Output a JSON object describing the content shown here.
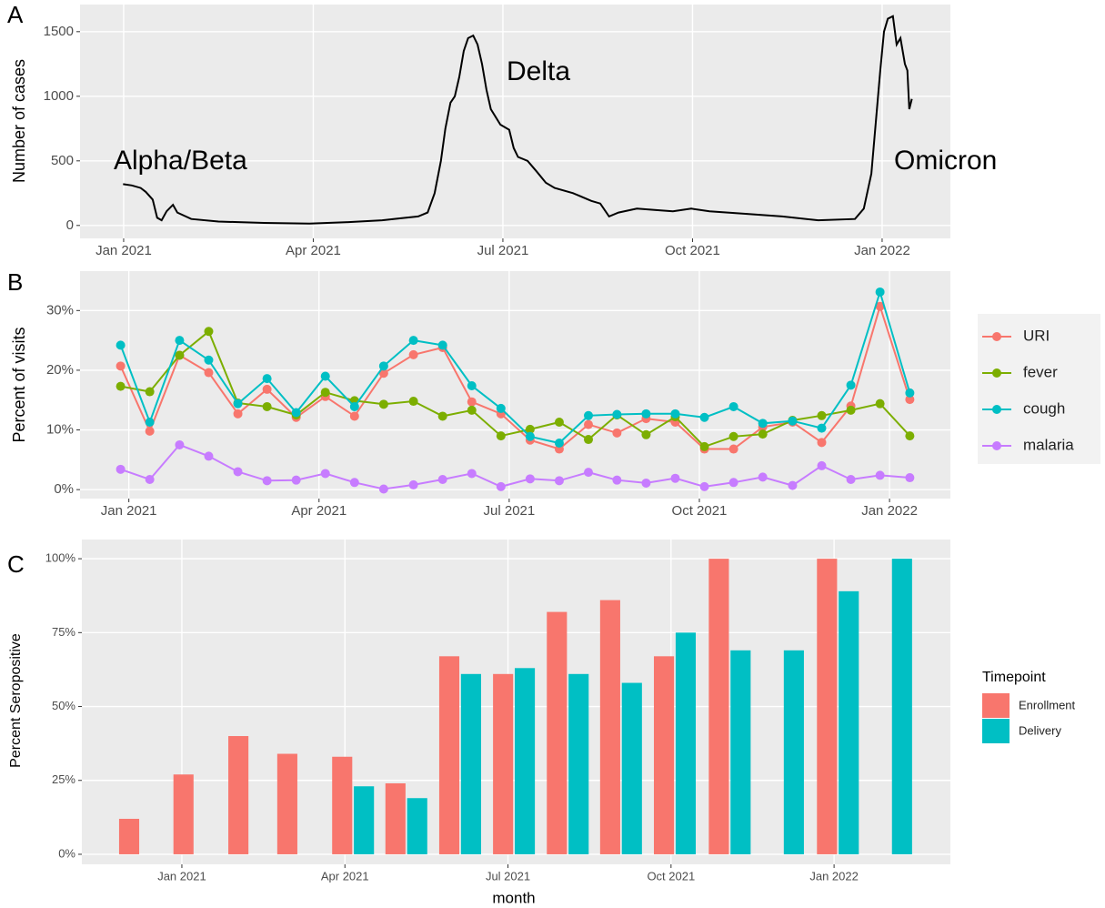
{
  "chart_data": [
    {
      "type": "line",
      "panel": "A",
      "ylabel": "Number of cases",
      "annotations": [
        "Alpha/Beta",
        "Delta",
        "Omicron"
      ],
      "x": [
        -0.01,
        0.13,
        0.27,
        0.35,
        0.46,
        0.53,
        0.6,
        0.68,
        0.78,
        0.85,
        1.07,
        1.5,
        2.22,
        2.94,
        3.51,
        4.09,
        4.37,
        4.66,
        4.81,
        4.92,
        5.02,
        5.09,
        5.17,
        5.24,
        5.31,
        5.38,
        5.45,
        5.53,
        5.6,
        5.67,
        5.74,
        5.81,
        5.96,
        6.1,
        6.17,
        6.24,
        6.39,
        6.53,
        6.68,
        6.82,
        7.11,
        7.4,
        7.54,
        7.68,
        7.83,
        8.12,
        8.4,
        8.69,
        8.98,
        9.27,
        9.84,
        10.42,
        10.99,
        11.57,
        11.71,
        11.83,
        11.9,
        11.97,
        12.03,
        12.09,
        12.17,
        12.23,
        12.29,
        12.36,
        12.4,
        12.43,
        12.47
      ],
      "values": [
        320,
        310,
        290,
        260,
        200,
        60,
        40,
        110,
        160,
        100,
        50,
        30,
        20,
        15,
        25,
        40,
        55,
        70,
        100,
        250,
        500,
        750,
        950,
        1000,
        1150,
        1350,
        1450,
        1470,
        1400,
        1250,
        1050,
        900,
        780,
        740,
        600,
        530,
        500,
        420,
        330,
        290,
        250,
        190,
        170,
        70,
        100,
        130,
        120,
        110,
        130,
        110,
        90,
        70,
        40,
        50,
        130,
        400,
        800,
        1200,
        1500,
        1600,
        1620,
        1400,
        1450,
        1250,
        1200,
        900,
        980
      ],
      "color": "#000000",
      "xlim": [
        -0.69,
        13.08
      ],
      "xticks": [
        {
          "value": 0,
          "label": "Jan 2021"
        },
        {
          "value": 3,
          "label": "Apr 2021"
        },
        {
          "value": 6,
          "label": "Jul 2021"
        },
        {
          "value": 9,
          "label": "Oct 2021"
        },
        {
          "value": 12,
          "label": "Jan 2022"
        }
      ],
      "ylim": [
        -100,
        1710
      ],
      "yticks": [
        0,
        500,
        1000,
        1500
      ],
      "grid": true
    },
    {
      "type": "line",
      "panel": "B",
      "ylabel": "Percent of visits",
      "markers": true,
      "x": [
        -0.13,
        0.33,
        0.8,
        1.26,
        1.72,
        2.18,
        2.64,
        3.1,
        3.56,
        4.02,
        4.49,
        4.95,
        5.41,
        5.87,
        6.33,
        6.79,
        7.25,
        7.7,
        8.16,
        8.62,
        9.08,
        9.54,
        10.0,
        10.47,
        10.93,
        11.39,
        11.85,
        12.32
      ],
      "series": [
        {
          "name": "URI",
          "color": "#F8766D",
          "values": [
            20.7,
            9.8,
            22.5,
            19.6,
            12.7,
            16.8,
            12.1,
            15.6,
            12.3,
            19.5,
            22.6,
            23.8,
            14.7,
            12.7,
            8.3,
            6.8,
            10.9,
            9.5,
            11.9,
            11.3,
            6.8,
            6.8,
            10.5,
            11.3,
            7.9,
            14.0,
            30.7,
            15.1
          ]
        },
        {
          "name": "fever",
          "color": "#7CAE00",
          "values": [
            17.3,
            16.4,
            22.5,
            26.5,
            14.5,
            13.9,
            12.5,
            16.3,
            14.9,
            14.3,
            14.8,
            12.3,
            13.3,
            9.0,
            10.1,
            11.3,
            8.4,
            12.5,
            9.2,
            12.2,
            7.2,
            8.9,
            9.3,
            11.6,
            12.4,
            13.3,
            14.4,
            9.0
          ]
        },
        {
          "name": "cough",
          "color": "#00BFC4",
          "values": [
            24.2,
            11.3,
            25.0,
            21.7,
            14.4,
            18.6,
            12.9,
            19.0,
            13.9,
            20.7,
            25.0,
            24.2,
            17.4,
            13.6,
            8.9,
            7.8,
            12.4,
            12.6,
            12.7,
            12.7,
            12.1,
            13.9,
            11.1,
            11.5,
            10.3,
            17.5,
            33.1,
            16.2
          ]
        },
        {
          "name": "malaria",
          "color": "#C77CFF",
          "values": [
            3.4,
            1.7,
            7.5,
            5.6,
            3.0,
            1.5,
            1.6,
            2.7,
            1.2,
            0.1,
            0.8,
            1.7,
            2.7,
            0.5,
            1.8,
            1.5,
            2.9,
            1.6,
            1.1,
            1.9,
            0.5,
            1.2,
            2.1,
            0.7,
            4.0,
            1.7,
            2.4,
            2.0
          ]
        }
      ],
      "xlim": [
        -0.77,
        12.96
      ],
      "xticks": [
        {
          "value": 0,
          "label": "Jan 2021"
        },
        {
          "value": 3,
          "label": "Apr 2021"
        },
        {
          "value": 6,
          "label": "Jul 2021"
        },
        {
          "value": 9,
          "label": "Oct 2021"
        },
        {
          "value": 12,
          "label": "Jan 2022"
        }
      ],
      "ylim": [
        -1.5,
        36.6
      ],
      "yticks": [
        {
          "value": 0,
          "label": "0%"
        },
        {
          "value": 10,
          "label": "10%"
        },
        {
          "value": 20,
          "label": "20%"
        },
        {
          "value": 30,
          "label": "30%"
        }
      ],
      "grid": true,
      "legend": "right"
    },
    {
      "type": "bar",
      "panel": "C",
      "ylabel": "Percent Seropositive",
      "xlabel": "month",
      "legend_title": "Timepoint",
      "x": [
        -0.77,
        0.23,
        1.24,
        2.14,
        3.15,
        4.13,
        5.12,
        6.11,
        7.1,
        8.08,
        9.07,
        10.08,
        11.06,
        12.07,
        13.05
      ],
      "series": [
        {
          "name": "Enrollment",
          "color": "#F8766D",
          "values": [
            12,
            27,
            40,
            34,
            33,
            24,
            67,
            61,
            82,
            86,
            67,
            100,
            null,
            100,
            null
          ]
        },
        {
          "name": "Delivery",
          "color": "#00BFC4",
          "values": [
            null,
            null,
            null,
            null,
            23,
            19,
            61,
            63,
            61,
            58,
            75,
            69,
            69,
            89,
            100
          ]
        }
      ],
      "xlim": [
        -1.84,
        14.14
      ],
      "xticks": [
        {
          "value": 0,
          "label": "Jan 2021"
        },
        {
          "value": 3,
          "label": "Apr 2021"
        },
        {
          "value": 6,
          "label": "Jul 2021"
        },
        {
          "value": 9,
          "label": "Oct 2021"
        },
        {
          "value": 12,
          "label": "Jan 2022"
        }
      ],
      "ylim": [
        -3.4,
        106.5
      ],
      "yticks": [
        {
          "value": 0,
          "label": "0%"
        },
        {
          "value": 25,
          "label": "25%"
        },
        {
          "value": 50,
          "label": "50%"
        },
        {
          "value": 75,
          "label": "75%"
        },
        {
          "value": 100,
          "label": "100%"
        }
      ],
      "grid": true,
      "legend": "right"
    }
  ]
}
